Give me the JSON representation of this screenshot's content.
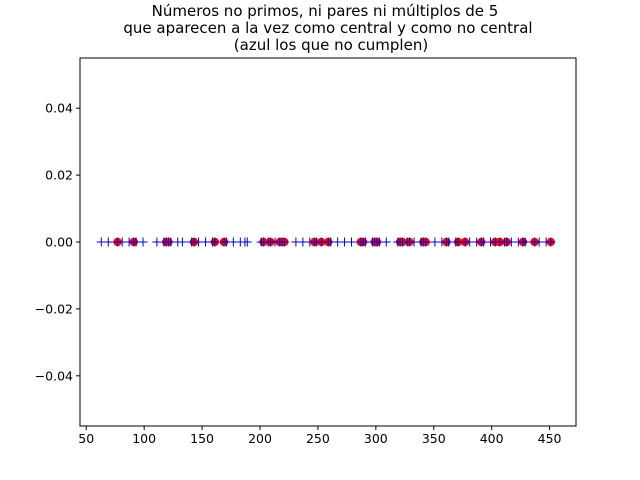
{
  "chart_data": {
    "type": "scatter",
    "title_lines": [
      "Números no primos, ni pares ni múltiplos de 5",
      "que aparecen a la vez como central y como no central",
      "(azul los que no cumplen)"
    ],
    "xlabel": "",
    "ylabel": "",
    "xlim": [
      44.6,
      472.8
    ],
    "ylim": [
      -0.055,
      0.055
    ],
    "x_ticks": [
      50,
      100,
      150,
      200,
      250,
      300,
      350,
      400,
      450
    ],
    "x_tick_labels": [
      "50",
      "100",
      "150",
      "200",
      "250",
      "300",
      "350",
      "400",
      "450"
    ],
    "y_ticks": [
      -0.04,
      -0.02,
      0.0,
      0.02,
      0.04
    ],
    "y_tick_labels": [
      "−0.04",
      "−0.02",
      "0.00",
      "0.02",
      "0.04"
    ],
    "grid": false,
    "series": [
      {
        "marker": "o",
        "color": "#ff0000",
        "x": [
          77,
          91,
          119,
          121,
          143,
          161,
          169,
          203,
          209,
          217,
          219,
          221,
          247,
          253,
          259,
          287,
          289,
          299,
          301,
          321,
          323,
          329,
          341,
          343,
          361,
          371,
          377,
          391,
          403,
          407,
          413,
          427,
          437,
          451
        ],
        "y": [
          0,
          0,
          0,
          0,
          0,
          0,
          0,
          0,
          0,
          0,
          0,
          0,
          0,
          0,
          0,
          0,
          0,
          0,
          0,
          0,
          0,
          0,
          0,
          0,
          0,
          0,
          0,
          0,
          0,
          0,
          0,
          0,
          0,
          0
        ]
      },
      {
        "marker": "+",
        "color": "#0000cc",
        "x": [
          63,
          69,
          77,
          81,
          87,
          91,
          93,
          99,
          111,
          117,
          119,
          121,
          123,
          129,
          133,
          141,
          143,
          147,
          153,
          159,
          161,
          169,
          171,
          177,
          183,
          187,
          189,
          201,
          203,
          207,
          209,
          213,
          217,
          219,
          221,
          231,
          237,
          243,
          247,
          249,
          253,
          259,
          261,
          267,
          273,
          279,
          287,
          289,
          291,
          297,
          299,
          301,
          303,
          309,
          319,
          321,
          323,
          327,
          329,
          333,
          339,
          341,
          343,
          351,
          357,
          361,
          363,
          369,
          371,
          377,
          381,
          387,
          391,
          393,
          399,
          403,
          407,
          411,
          413,
          417,
          423,
          427,
          429,
          437,
          441,
          447,
          451
        ],
        "y": [
          0,
          0,
          0,
          0,
          0,
          0,
          0,
          0,
          0,
          0,
          0,
          0,
          0,
          0,
          0,
          0,
          0,
          0,
          0,
          0,
          0,
          0,
          0,
          0,
          0,
          0,
          0,
          0,
          0,
          0,
          0,
          0,
          0,
          0,
          0,
          0,
          0,
          0,
          0,
          0,
          0,
          0,
          0,
          0,
          0,
          0,
          0,
          0,
          0,
          0,
          0,
          0,
          0,
          0,
          0,
          0,
          0,
          0,
          0,
          0,
          0,
          0,
          0,
          0,
          0,
          0,
          0,
          0,
          0,
          0,
          0,
          0,
          0,
          0,
          0,
          0,
          0,
          0,
          0,
          0,
          0,
          0,
          0,
          0,
          0,
          0,
          0
        ]
      }
    ]
  }
}
